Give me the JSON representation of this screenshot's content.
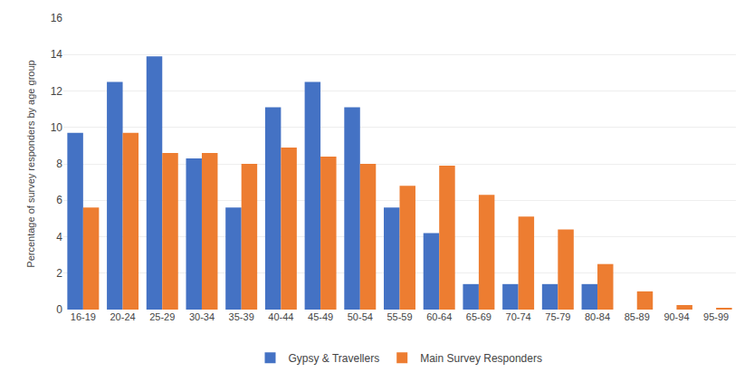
{
  "chart_data": {
    "type": "bar",
    "ylabel": "Percentage of survey responders by age group",
    "categories": [
      "16-19",
      "20-24",
      "25-29",
      "30-34",
      "35-39",
      "40-44",
      "45-49",
      "50-54",
      "55-59",
      "60-64",
      "65-69",
      "70-74",
      "75-79",
      "80-84",
      "85-89",
      "90-94",
      "95-99"
    ],
    "series": [
      {
        "name": "Gypsy & Travellers",
        "color": "#4472C4",
        "values": [
          9.7,
          12.5,
          13.9,
          8.3,
          5.6,
          11.1,
          12.5,
          11.1,
          5.6,
          4.2,
          1.4,
          1.4,
          1.4,
          1.4,
          0.0,
          0.0,
          0.0
        ]
      },
      {
        "name": "Main Survey Responders",
        "color": "#ED7D31",
        "values": [
          5.6,
          9.7,
          8.6,
          8.6,
          8.0,
          8.9,
          8.4,
          8.0,
          6.8,
          7.9,
          6.3,
          5.1,
          4.4,
          2.5,
          1.0,
          0.25,
          0.1
        ]
      }
    ],
    "ylim": [
      0,
      16
    ],
    "yticks": [
      0,
      2,
      4,
      6,
      8,
      10,
      12,
      14,
      16
    ],
    "grid": true,
    "legend": "bottom"
  }
}
